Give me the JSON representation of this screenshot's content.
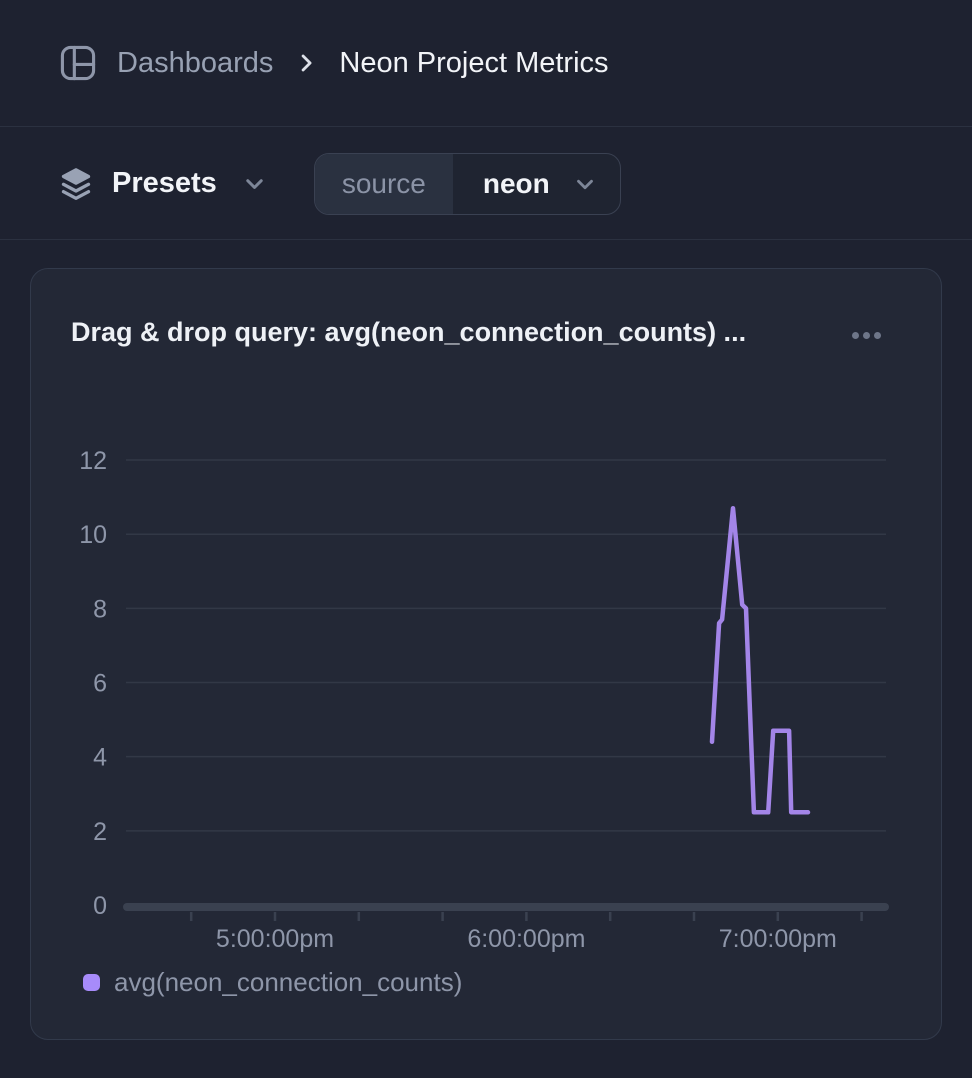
{
  "header": {
    "breadcrumb_root": "Dashboards",
    "page_title": "Neon Project Metrics"
  },
  "toolbar": {
    "presets_label": "Presets",
    "filter": {
      "key": "source",
      "value": "neon"
    }
  },
  "card": {
    "title": "Drag & drop query: avg(neon_connection_counts) ...",
    "menu_icon": "ellipsis-horizontal-icon"
  },
  "colors": {
    "page_bg": "#1e2230",
    "card_bg": "#232836",
    "card_border": "#323a4b",
    "divider": "#2b3140",
    "text_primary": "#f2f4f8",
    "text_secondary": "#98a1b3",
    "axis_label": "#8e96a9",
    "gridline": "#323846",
    "axis_bar": "#3a4150",
    "line": "#a385e8",
    "legend_swatch": "#a78bfa",
    "menu_dots": "#6e7689",
    "pill_key_bg": "#2a3140",
    "pill_value_bg": "#1f2431",
    "pill_border": "#3a4152"
  },
  "chart_data": {
    "type": "line",
    "title": "Drag & drop query: avg(neon_connection_counts) ...",
    "xlabel": "",
    "ylabel": "",
    "ylim": [
      0,
      12
    ],
    "grid": "horizontal",
    "legend_position": "bottom-left",
    "y_ticks": [
      0,
      2,
      4,
      6,
      8,
      10,
      12
    ],
    "x_ticks": [
      {
        "min": -20,
        "time": "4:40:00pm",
        "label": ""
      },
      {
        "min": 0,
        "time": "5:00:00pm",
        "label": "5:00:00pm"
      },
      {
        "min": 20,
        "time": "5:20:00pm",
        "label": ""
      },
      {
        "min": 40,
        "time": "5:40:00pm",
        "label": ""
      },
      {
        "min": 60,
        "time": "6:00:00pm",
        "label": "6:00:00pm"
      },
      {
        "min": 80,
        "time": "6:20:00pm",
        "label": ""
      },
      {
        "min": 100,
        "time": "6:40:00pm",
        "label": ""
      },
      {
        "min": 120,
        "time": "7:00:00pm",
        "label": "7:00:00pm"
      },
      {
        "min": 140,
        "time": "7:20:00pm",
        "label": ""
      }
    ],
    "series": [
      {
        "name": "avg(neon_connection_counts)",
        "color": "#a385e8",
        "points": [
          {
            "time": "6:44:20pm",
            "min": 104.3,
            "value": 4.4
          },
          {
            "time": "6:46:00pm",
            "min": 106.0,
            "value": 7.6
          },
          {
            "time": "6:46:40pm",
            "min": 106.7,
            "value": 7.7
          },
          {
            "time": "6:49:20pm",
            "min": 109.3,
            "value": 10.7
          },
          {
            "time": "6:51:30pm",
            "min": 111.5,
            "value": 8.1
          },
          {
            "time": "6:52:25pm",
            "min": 112.4,
            "value": 8.0
          },
          {
            "time": "6:54:20pm",
            "min": 114.3,
            "value": 2.5
          },
          {
            "time": "6:57:40pm",
            "min": 117.7,
            "value": 2.5
          },
          {
            "time": "6:58:55pm",
            "min": 118.9,
            "value": 4.7
          },
          {
            "time": "7:02:40pm",
            "min": 122.7,
            "value": 4.7
          },
          {
            "time": "7:03:10pm",
            "min": 123.2,
            "value": 2.5
          },
          {
            "time": "7:07:10pm",
            "min": 127.2,
            "value": 2.5
          }
        ]
      }
    ]
  }
}
